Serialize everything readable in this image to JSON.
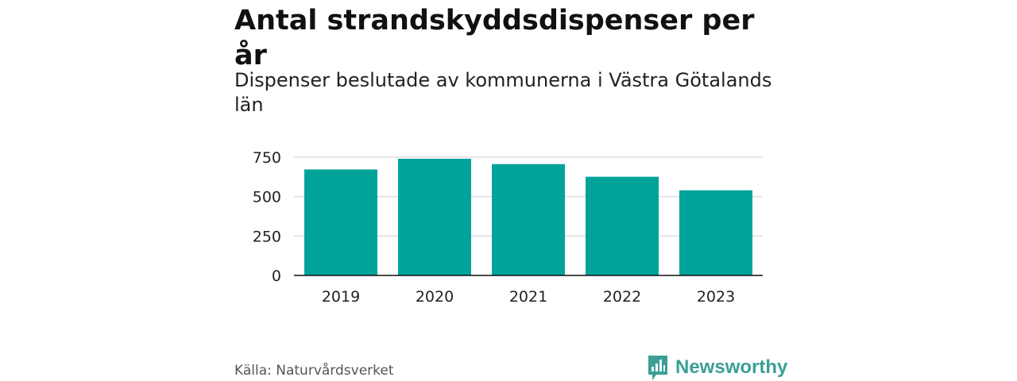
{
  "chart_data": {
    "type": "bar",
    "title": "Antal strandskyddsdispenser per år",
    "subtitle": "Dispenser beslutade av kommunerna i Västra Götalands län",
    "categories": [
      "2019",
      "2020",
      "2021",
      "2022",
      "2023"
    ],
    "values": [
      672,
      740,
      706,
      626,
      540
    ],
    "ylim": [
      0,
      750
    ],
    "yticks": [
      0,
      250,
      500,
      750
    ],
    "xlabel": "",
    "ylabel": "",
    "grid": true,
    "bar_color": "#00a39a"
  },
  "source": "Källa: Naturvårdsverket",
  "brand": {
    "name": "Newsworthy",
    "color": "#3b9f96",
    "icon": "newsworthy-logo-icon"
  }
}
